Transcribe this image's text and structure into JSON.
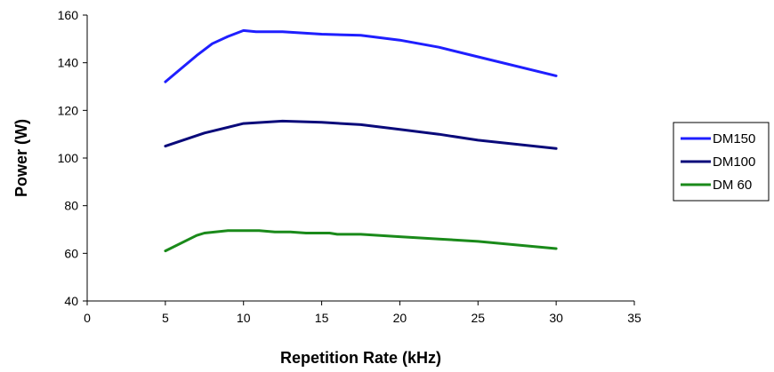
{
  "chart_data": {
    "type": "line",
    "title": "",
    "xlabel": "Repetition Rate (kHz)",
    "ylabel": "Power (W)",
    "xlim": [
      0,
      35
    ],
    "ylim": [
      40,
      160
    ],
    "xticks": [
      "0",
      "5",
      "10",
      "15",
      "20",
      "25",
      "30",
      "35"
    ],
    "yticks": [
      "40",
      "60",
      "80",
      "100",
      "120",
      "140",
      "160"
    ],
    "grid": false,
    "legend": "right",
    "series": [
      {
        "name": "DM150",
        "color": "#1f1fff",
        "x": [
          5,
          6,
          7,
          8,
          9,
          10,
          10.8,
          12.5,
          15,
          17.5,
          20,
          22.5,
          25,
          30
        ],
        "y": [
          132,
          137.5,
          143,
          148,
          151,
          153.5,
          153,
          153,
          152,
          151.5,
          149.5,
          146.5,
          142.5,
          134.5
        ]
      },
      {
        "name": "DM100",
        "color": "#0a0a7a",
        "x": [
          5,
          7.5,
          10,
          12.5,
          15,
          17.5,
          20,
          22.5,
          25,
          30
        ],
        "y": [
          105,
          110.5,
          114.5,
          115.5,
          115,
          114,
          112,
          110,
          107.5,
          104
        ]
      },
      {
        "name": "DM 60",
        "color": "#1a8a1a",
        "x": [
          5,
          7,
          7.5,
          9,
          10,
          11,
          12,
          13,
          14,
          15,
          15.5,
          16,
          17.5,
          20,
          22.5,
          25,
          30
        ],
        "y": [
          61,
          67.5,
          68.5,
          69.5,
          69.5,
          69.5,
          69,
          69,
          68.5,
          68.5,
          68.5,
          68,
          68,
          67,
          66,
          65,
          62
        ]
      }
    ]
  }
}
